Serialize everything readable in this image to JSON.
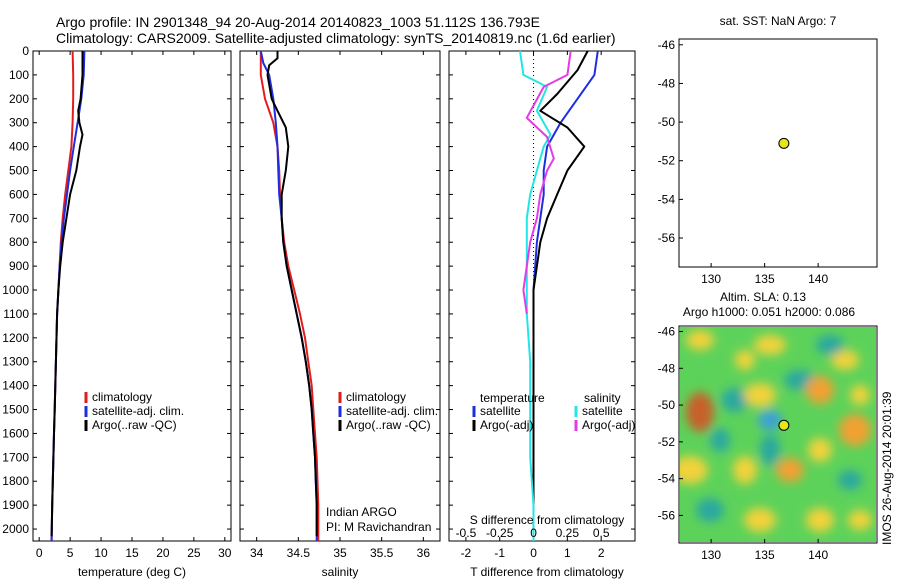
{
  "header": {
    "line1": "Argo profile: IN 2901348_94 20-Aug-2014 20140823_1003 51.112S 136.793E",
    "line2": "Climatology: CARS2009. Satellite-adjusted climatology: synTS_20140819.nc (1.6d earlier)"
  },
  "colors": {
    "climatology": "#e21c1c",
    "satellite": "#1d2ee0",
    "argo": "#000000",
    "satellite_s": "#22e6e6",
    "argo_s": "#e43be4",
    "station": "#e6e619"
  },
  "chart_data": [
    {
      "id": "temperature",
      "type": "line",
      "xlabel": "temperature (deg C)",
      "ylabel": "",
      "xlim": [
        -1,
        31
      ],
      "ylim": [
        2050,
        0
      ],
      "xticks": [
        0,
        5,
        10,
        15,
        20,
        25,
        30
      ],
      "yticks": [
        0,
        100,
        200,
        300,
        400,
        500,
        600,
        700,
        800,
        900,
        1000,
        1100,
        1200,
        1300,
        1400,
        1500,
        1600,
        1700,
        1800,
        1900,
        2000
      ],
      "legend": [
        "climatology",
        "satellite-adj. clim.",
        "Argo(..raw -QC)"
      ],
      "series": [
        {
          "name": "climatology",
          "color": "#e21c1c",
          "points": [
            [
              5.4,
              0
            ],
            [
              5.5,
              100
            ],
            [
              5.5,
              200
            ],
            [
              5.4,
              300
            ],
            [
              5.2,
              400
            ],
            [
              4.7,
              500
            ],
            [
              4.2,
              600
            ],
            [
              3.8,
              700
            ],
            [
              3.5,
              800
            ],
            [
              3.3,
              900
            ],
            [
              3.1,
              1000
            ],
            [
              2.9,
              1100
            ],
            [
              2.8,
              1200
            ],
            [
              2.7,
              1300
            ],
            [
              2.6,
              1400
            ],
            [
              2.5,
              1500
            ],
            [
              2.4,
              1600
            ],
            [
              2.3,
              1700
            ],
            [
              2.2,
              1800
            ],
            [
              2.1,
              1900
            ],
            [
              2.0,
              2050
            ]
          ]
        },
        {
          "name": "satellite-adj. clim.",
          "color": "#1d2ee0",
          "points": [
            [
              7.3,
              0
            ],
            [
              7.2,
              100
            ],
            [
              6.8,
              200
            ],
            [
              6.2,
              300
            ],
            [
              5.6,
              400
            ],
            [
              5.0,
              500
            ],
            [
              4.5,
              600
            ],
            [
              4.0,
              700
            ],
            [
              3.6,
              800
            ],
            [
              3.3,
              900
            ],
            [
              3.1,
              1000
            ],
            [
              2.9,
              1100
            ],
            [
              2.8,
              1200
            ],
            [
              2.7,
              1300
            ],
            [
              2.6,
              1400
            ],
            [
              2.5,
              1500
            ],
            [
              2.4,
              1600
            ],
            [
              2.3,
              1700
            ],
            [
              2.2,
              1800
            ],
            [
              2.1,
              1900
            ],
            [
              2.0,
              2050
            ]
          ]
        },
        {
          "name": "Argo(..raw -QC)",
          "color": "#000000",
          "points": [
            [
              7.0,
              0
            ],
            [
              7.0,
              100
            ],
            [
              6.7,
              200
            ],
            [
              6.3,
              250
            ],
            [
              6.5,
              300
            ],
            [
              7.0,
              350
            ],
            [
              6.6,
              400
            ],
            [
              6.0,
              500
            ],
            [
              5.0,
              600
            ],
            [
              4.4,
              700
            ],
            [
              3.8,
              800
            ],
            [
              3.4,
              900
            ],
            [
              3.1,
              1000
            ],
            [
              2.9,
              1100
            ],
            [
              2.8,
              1200
            ],
            [
              2.7,
              1300
            ],
            [
              2.6,
              1400
            ],
            [
              2.5,
              1500
            ],
            [
              2.4,
              1600
            ],
            [
              2.3,
              1700
            ],
            [
              2.2,
              1800
            ],
            [
              2.1,
              1900
            ],
            [
              2.0,
              2030
            ]
          ]
        }
      ]
    },
    {
      "id": "salinity",
      "type": "line",
      "xlabel": "salinity",
      "ylabel": "",
      "xlim": [
        33.8,
        36.2
      ],
      "ylim": [
        2050,
        0
      ],
      "xticks": [
        34,
        34.5,
        35,
        35.5,
        36
      ],
      "legend": [
        "climatology",
        "satellite-adj. clim.",
        "Argo(..raw -QC)"
      ],
      "annotation": [
        "Indian ARGO",
        "PI: M Ravichandran"
      ],
      "series": [
        {
          "name": "climatology",
          "color": "#e21c1c",
          "points": [
            [
              34.05,
              0
            ],
            [
              34.05,
              100
            ],
            [
              34.1,
              200
            ],
            [
              34.2,
              300
            ],
            [
              34.25,
              400
            ],
            [
              34.27,
              500
            ],
            [
              34.28,
              600
            ],
            [
              34.3,
              700
            ],
            [
              34.33,
              800
            ],
            [
              34.38,
              900
            ],
            [
              34.45,
              1000
            ],
            [
              34.52,
              1100
            ],
            [
              34.58,
              1200
            ],
            [
              34.62,
              1300
            ],
            [
              34.66,
              1400
            ],
            [
              34.68,
              1500
            ],
            [
              34.7,
              1600
            ],
            [
              34.72,
              1700
            ],
            [
              34.73,
              1800
            ],
            [
              34.74,
              1900
            ],
            [
              34.74,
              2050
            ]
          ]
        },
        {
          "name": "satellite-adj. clim.",
          "color": "#1d2ee0",
          "points": [
            [
              34.05,
              0
            ],
            [
              34.08,
              50
            ],
            [
              34.15,
              100
            ],
            [
              34.2,
              200
            ],
            [
              34.23,
              300
            ],
            [
              34.25,
              400
            ],
            [
              34.26,
              500
            ],
            [
              34.27,
              600
            ],
            [
              34.3,
              700
            ],
            [
              34.32,
              800
            ],
            [
              34.36,
              900
            ],
            [
              34.42,
              1000
            ],
            [
              34.48,
              1100
            ],
            [
              34.54,
              1200
            ],
            [
              34.59,
              1300
            ],
            [
              34.63,
              1400
            ],
            [
              34.66,
              1500
            ],
            [
              34.68,
              1600
            ],
            [
              34.7,
              1700
            ],
            [
              34.71,
              1800
            ],
            [
              34.72,
              1900
            ],
            [
              34.72,
              2050
            ]
          ]
        },
        {
          "name": "Argo(..raw -QC)",
          "color": "#000000",
          "points": [
            [
              34.25,
              0
            ],
            [
              34.25,
              30
            ],
            [
              34.15,
              60
            ],
            [
              34.13,
              100
            ],
            [
              34.18,
              200
            ],
            [
              34.25,
              250
            ],
            [
              34.35,
              320
            ],
            [
              34.38,
              400
            ],
            [
              34.35,
              500
            ],
            [
              34.3,
              600
            ],
            [
              34.3,
              700
            ],
            [
              34.32,
              800
            ],
            [
              34.36,
              900
            ],
            [
              34.42,
              1000
            ],
            [
              34.48,
              1100
            ],
            [
              34.54,
              1200
            ],
            [
              34.59,
              1300
            ],
            [
              34.63,
              1400
            ],
            [
              34.66,
              1500
            ],
            [
              34.68,
              1600
            ],
            [
              34.7,
              1700
            ],
            [
              34.71,
              1800
            ],
            [
              34.72,
              1900
            ],
            [
              34.72,
              2030
            ]
          ]
        }
      ]
    },
    {
      "id": "difference",
      "type": "line",
      "xlabel": "T difference from climatology",
      "xlabel_top": "S difference from climatology",
      "xlim": [
        -2.5,
        3
      ],
      "ylim": [
        2050,
        0
      ],
      "xticks": [
        -2,
        -1,
        0,
        1,
        2
      ],
      "xticks_s": [
        "-0.5",
        "-0.25",
        "0",
        "0.25",
        "0.5"
      ],
      "legend_headers": [
        "temperature",
        "salinity"
      ],
      "legend": [
        "satellite",
        "Argo(-adj)",
        "satellite",
        "Argo(-adj)"
      ],
      "series": [
        {
          "name": "temperature satellite",
          "color": "#1d2ee0",
          "points": [
            [
              1.9,
              0
            ],
            [
              1.8,
              100
            ],
            [
              1.3,
              200
            ],
            [
              0.8,
              300
            ],
            [
              0.4,
              400
            ],
            [
              0.3,
              500
            ],
            [
              0.3,
              600
            ],
            [
              0.2,
              700
            ],
            [
              0.1,
              800
            ],
            [
              0.05,
              900
            ],
            [
              0,
              1000
            ],
            [
              0,
              1200
            ],
            [
              0,
              1400
            ],
            [
              0,
              1600
            ],
            [
              0,
              1800
            ],
            [
              0,
              2050
            ]
          ]
        },
        {
          "name": "temperature Argo(-adj)",
          "color": "#000000",
          "points": [
            [
              1.6,
              0
            ],
            [
              1.3,
              80
            ],
            [
              0.7,
              180
            ],
            [
              0.2,
              250
            ],
            [
              1.0,
              320
            ],
            [
              1.5,
              400
            ],
            [
              1.0,
              500
            ],
            [
              0.7,
              600
            ],
            [
              0.4,
              700
            ],
            [
              0.2,
              800
            ],
            [
              0.1,
              900
            ],
            [
              0,
              1000
            ],
            [
              0,
              1200
            ],
            [
              0,
              1400
            ],
            [
              0,
              1600
            ],
            [
              0,
              1800
            ],
            [
              0,
              2030
            ]
          ]
        },
        {
          "name": "salinity satellite",
          "color": "#22e6e6",
          "points": [
            [
              -0.4,
              0
            ],
            [
              -0.3,
              100
            ],
            [
              0.4,
              150
            ],
            [
              0.1,
              250
            ],
            [
              0.5,
              350
            ],
            [
              0.3,
              400
            ],
            [
              0.1,
              500
            ],
            [
              -0.1,
              600
            ],
            [
              -0.2,
              700
            ],
            [
              -0.2,
              900
            ],
            [
              -0.2,
              1100
            ],
            [
              -0.1,
              1300
            ],
            [
              -0.1,
              1500
            ],
            [
              -0.1,
              1700
            ],
            [
              0,
              1900
            ],
            [
              0,
              2050
            ]
          ]
        },
        {
          "name": "salinity Argo(-adj)",
          "color": "#e43be4",
          "points": [
            [
              1.1,
              0
            ],
            [
              1.0,
              100
            ],
            [
              0.3,
              150
            ],
            [
              -0.2,
              280
            ],
            [
              0.4,
              360
            ],
            [
              0.6,
              450
            ],
            [
              0.4,
              500
            ],
            [
              0.2,
              600
            ],
            [
              0.1,
              700
            ],
            [
              -0.1,
              800
            ],
            [
              -0.2,
              900
            ],
            [
              -0.3,
              1000
            ],
            [
              -0.2,
              1100
            ]
          ]
        }
      ]
    },
    {
      "id": "position",
      "type": "scatter",
      "title": "sat. SST: NaN Argo: 7",
      "xlim": [
        127,
        145.5
      ],
      "ylim": [
        -57.5,
        -45.7
      ],
      "xticks": [
        130,
        135,
        140
      ],
      "yticks": [
        -46,
        -48,
        -50,
        -52,
        -54,
        -56
      ],
      "points": [
        [
          136.8,
          -51.1
        ]
      ]
    },
    {
      "id": "altimetry",
      "type": "heatmap",
      "title": "Altim. SLA: 0.13",
      "subtitle": "Argo h1000: 0.051 h2000: 0.086",
      "xlim": [
        127,
        145.5
      ],
      "ylim": [
        -57.5,
        -45.7
      ],
      "xticks": [
        130,
        135,
        140
      ],
      "yticks": [
        -46,
        -48,
        -50,
        -52,
        -54,
        -56
      ],
      "points": [
        [
          136.8,
          -51.1
        ]
      ],
      "watermark": "IMOS 26-Aug-2014 20:01:39"
    }
  ]
}
